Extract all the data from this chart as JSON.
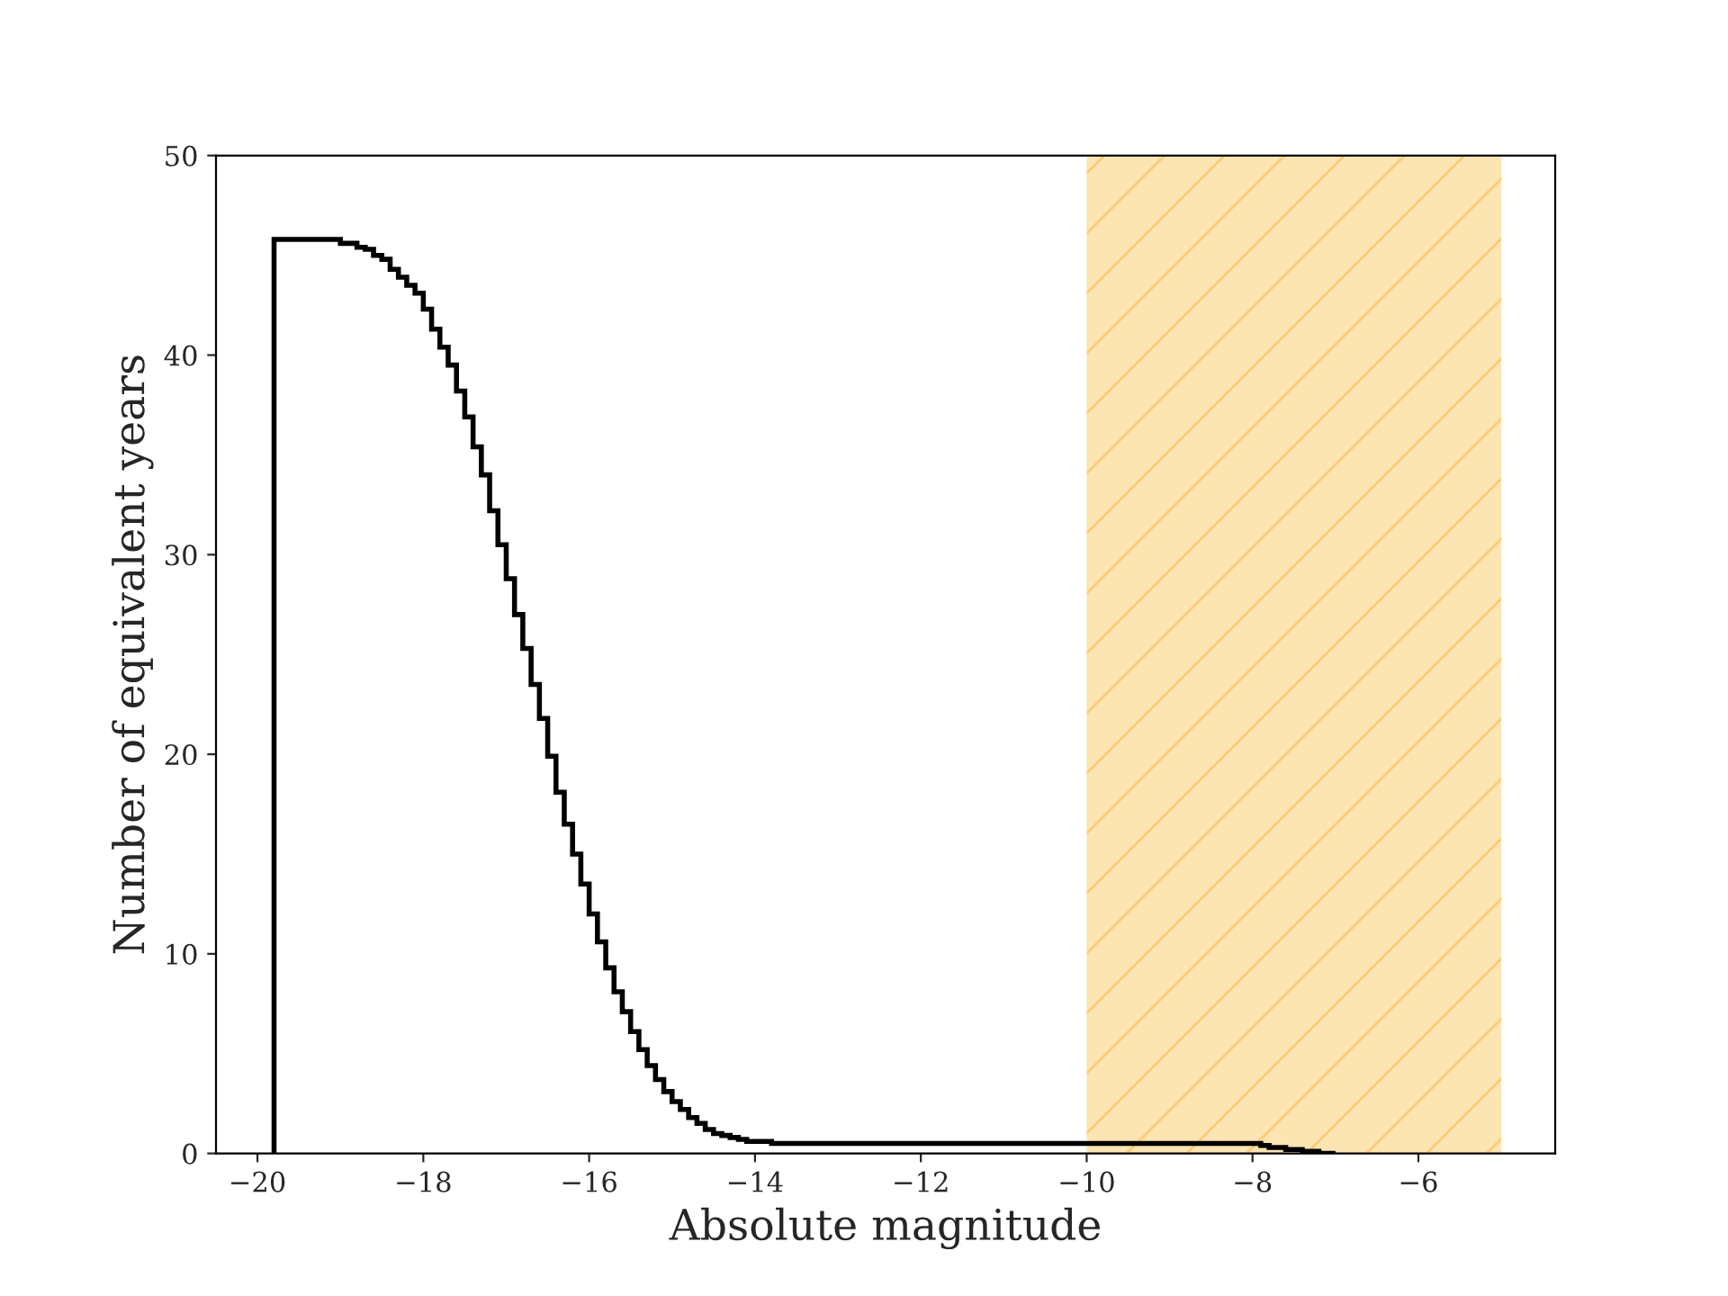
{
  "chart_data": {
    "type": "histogram",
    "xlabel": "Absolute magnitude",
    "ylabel": "Number of equivalent years",
    "bins": [
      -19.8,
      -19.0,
      -18.8,
      -18.7,
      -18.6,
      -18.5,
      -18.4,
      -18.3,
      -18.2,
      -18.1,
      -18.0,
      -17.9,
      -17.8,
      -17.7,
      -17.6,
      -17.5,
      -17.4,
      -17.3,
      -17.2,
      -17.1,
      -17.0,
      -16.9,
      -16.8,
      -16.7,
      -16.6,
      -16.5,
      -16.4,
      -16.3,
      -16.2,
      -16.1,
      -16.0,
      -15.9,
      -15.8,
      -15.7,
      -15.6,
      -15.5,
      -15.4,
      -15.3,
      -15.2,
      -15.1,
      -15.0,
      -14.9,
      -14.8,
      -14.7,
      -14.6,
      -14.5,
      -14.4,
      -14.3,
      -14.2,
      -14.1,
      -14.0,
      -13.8,
      -13.5,
      -7.9,
      -7.8,
      -7.6,
      -7.4,
      -7.2,
      -7.0
    ],
    "values": [
      45.8,
      45.6,
      45.4,
      45.3,
      45.0,
      44.8,
      44.3,
      43.9,
      43.5,
      43.1,
      42.3,
      41.3,
      40.4,
      39.5,
      38.2,
      36.9,
      35.4,
      34.0,
      32.2,
      30.5,
      28.8,
      27.0,
      25.3,
      23.5,
      21.8,
      19.9,
      18.1,
      16.5,
      15.0,
      13.5,
      12.0,
      10.6,
      9.3,
      8.1,
      7.1,
      6.1,
      5.2,
      4.4,
      3.7,
      3.1,
      2.6,
      2.2,
      1.8,
      1.5,
      1.2,
      1.0,
      0.9,
      0.8,
      0.7,
      0.6,
      0.6,
      0.5,
      0.5,
      0.4,
      0.3,
      0.2,
      0.1,
      0.0
    ],
    "color": "#000000",
    "xlim": [
      -20.5,
      -4.35
    ],
    "ylim": [
      0,
      50
    ],
    "xticks": [
      -20,
      -18,
      -16,
      -14,
      -12,
      -10,
      -8,
      -6
    ],
    "yticks": [
      0,
      10,
      20,
      30,
      40,
      50
    ],
    "bands": [
      {
        "axis": "x",
        "from": -10,
        "to": -5,
        "color": "#fde4b3"
      }
    ],
    "grid": false
  }
}
